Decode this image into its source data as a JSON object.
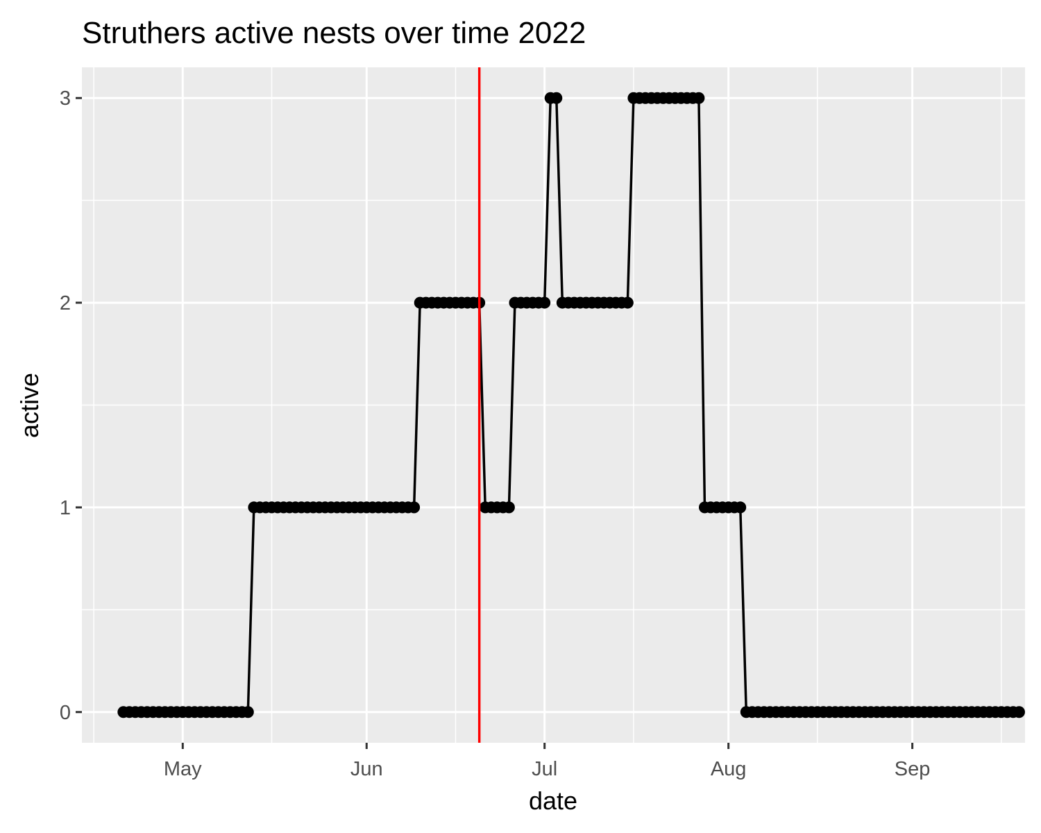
{
  "chart_data": {
    "type": "line",
    "title": "Struthers active nests over time 2022",
    "xlabel": "date",
    "ylabel": "active",
    "x_type": "date",
    "xlim": [
      "2022-04-14",
      "2022-09-20"
    ],
    "ylim": [
      -0.15,
      3.15
    ],
    "x_ticks": [
      {
        "date": "2022-05-01",
        "label": "May"
      },
      {
        "date": "2022-06-01",
        "label": "Jun"
      },
      {
        "date": "2022-07-01",
        "label": "Jul"
      },
      {
        "date": "2022-08-01",
        "label": "Aug"
      },
      {
        "date": "2022-09-01",
        "label": "Sep"
      }
    ],
    "x_minor_ticks": [
      "2022-04-16",
      "2022-05-16",
      "2022-06-16",
      "2022-07-16",
      "2022-08-16",
      "2022-09-16"
    ],
    "y_ticks": [
      {
        "value": 0,
        "label": "0"
      },
      {
        "value": 1,
        "label": "1"
      },
      {
        "value": 2,
        "label": "2"
      },
      {
        "value": 3,
        "label": "3"
      }
    ],
    "y_minor_ticks": [
      0.5,
      1.5,
      2.5
    ],
    "grid": true,
    "series": [
      {
        "color": "#000000",
        "points": [
          {
            "x": "2022-04-21",
            "y": 0
          },
          {
            "x": "2022-05-12",
            "y": 0
          },
          {
            "x": "2022-05-13",
            "y": 1
          },
          {
            "x": "2022-06-09",
            "y": 1
          },
          {
            "x": "2022-06-10",
            "y": 2
          },
          {
            "x": "2022-06-20",
            "y": 2
          },
          {
            "x": "2022-06-21",
            "y": 1
          },
          {
            "x": "2022-06-25",
            "y": 1
          },
          {
            "x": "2022-06-26",
            "y": 2
          },
          {
            "x": "2022-07-01",
            "y": 2
          },
          {
            "x": "2022-07-02",
            "y": 3
          },
          {
            "x": "2022-07-03",
            "y": 3
          },
          {
            "x": "2022-07-04",
            "y": 2
          },
          {
            "x": "2022-07-15",
            "y": 2
          },
          {
            "x": "2022-07-16",
            "y": 3
          },
          {
            "x": "2022-07-27",
            "y": 3
          },
          {
            "x": "2022-07-28",
            "y": 1
          },
          {
            "x": "2022-08-03",
            "y": 1
          },
          {
            "x": "2022-08-04",
            "y": 0
          },
          {
            "x": "2022-09-19",
            "y": 0
          }
        ]
      }
    ],
    "vline": {
      "x": "2022-06-20",
      "color": "#ff0000"
    },
    "colors": {
      "panel_background": "#ebebeb",
      "grid": "#ffffff",
      "line": "#000000",
      "tick_label": "#4d4d4d",
      "tick_mark": "#333333"
    }
  }
}
